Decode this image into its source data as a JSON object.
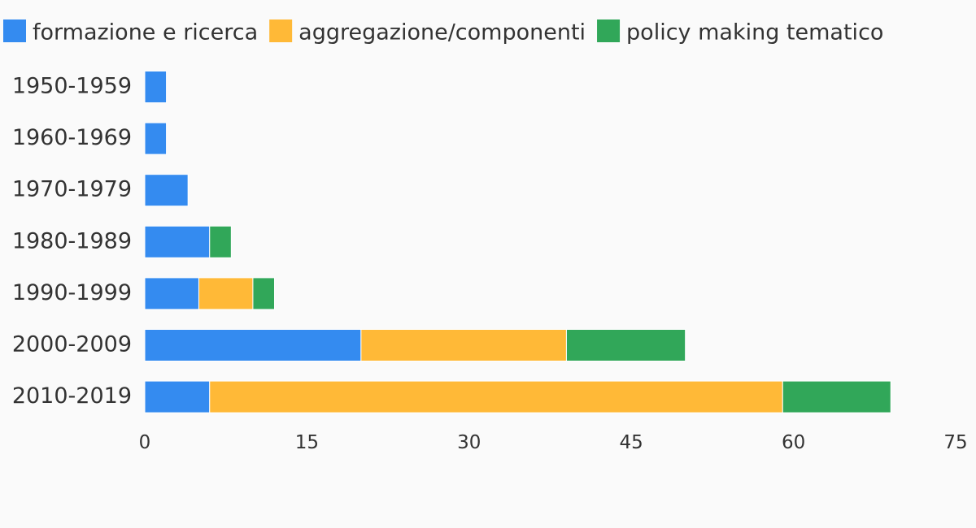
{
  "chart_data": {
    "type": "bar",
    "orientation": "horizontal",
    "stacked": true,
    "title": "",
    "xlabel": "",
    "ylabel": "",
    "categories": [
      "1950-1959",
      "1960-1969",
      "1970-1979",
      "1980-1989",
      "1990-1999",
      "2000-2009",
      "2010-2019"
    ],
    "series": [
      {
        "name": "formazione e ricerca",
        "color": "#348bf0",
        "values": [
          2,
          2,
          4,
          6,
          5,
          20,
          6
        ]
      },
      {
        "name": "aggregazione/componenti",
        "color": "#ffb937",
        "values": [
          0,
          0,
          0,
          0,
          5,
          19,
          53
        ]
      },
      {
        "name": "policy making tematico",
        "color": "#31a759",
        "values": [
          0,
          0,
          0,
          2,
          2,
          11,
          10
        ]
      }
    ],
    "xlim": [
      0,
      75
    ],
    "xticks": [
      0,
      15,
      30,
      45,
      60,
      75
    ],
    "xtick_labels": [
      "0",
      "15",
      "30",
      "45",
      "60",
      "75"
    ],
    "grid": false,
    "legend_position": "top-left"
  }
}
